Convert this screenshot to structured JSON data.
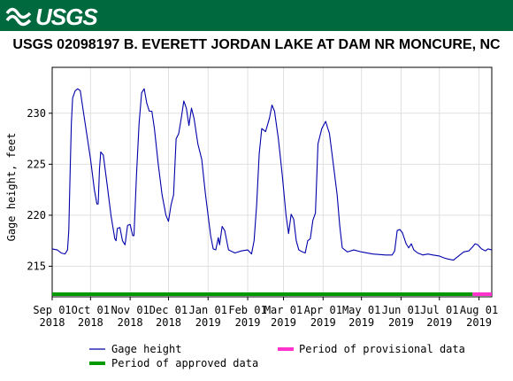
{
  "header": {
    "logo_text": "USGS",
    "logo_icon": "usgs-wave-logo",
    "brand_color": "#00693e"
  },
  "title": "USGS 02098197  B. EVERETT JORDAN LAKE AT DAM NR MONCURE, NC",
  "chart_data": {
    "type": "line",
    "ylabel": "Gage height, feet",
    "xlabel": "",
    "ylim": [
      212,
      234.5
    ],
    "xlim": [
      "2018-09-01",
      "2019-08-11"
    ],
    "grid": true,
    "y_ticks": [
      215,
      220,
      225,
      230
    ],
    "x_ticks": [
      {
        "date": "2018-09-01",
        "label_top": "Sep 01",
        "label_bottom": "2018"
      },
      {
        "date": "2018-10-01",
        "label_top": "Oct 01",
        "label_bottom": "2018"
      },
      {
        "date": "2018-11-01",
        "label_top": "Nov 01",
        "label_bottom": "2018"
      },
      {
        "date": "2018-12-01",
        "label_top": "Dec 01",
        "label_bottom": "2018"
      },
      {
        "date": "2019-01-01",
        "label_top": "Jan 01",
        "label_bottom": "2019"
      },
      {
        "date": "2019-02-01",
        "label_top": "Feb 01",
        "label_bottom": "2019"
      },
      {
        "date": "2019-03-01",
        "label_top": "Mar 01",
        "label_bottom": "2019"
      },
      {
        "date": "2019-04-01",
        "label_top": "Apr 01",
        "label_bottom": "2019"
      },
      {
        "date": "2019-05-01",
        "label_top": "May 01",
        "label_bottom": "2019"
      },
      {
        "date": "2019-06-01",
        "label_top": "Jun 01",
        "label_bottom": "2019"
      },
      {
        "date": "2019-07-01",
        "label_top": "Jul 01",
        "label_bottom": "2019"
      },
      {
        "date": "2019-08-01",
        "label_top": "Aug 01",
        "label_bottom": "2019"
      }
    ],
    "series": [
      {
        "name": "Gage height",
        "color": "#0000aa",
        "points": [
          [
            "2018-09-01",
            216.7
          ],
          [
            "2018-09-05",
            216.6
          ],
          [
            "2018-09-08",
            216.3
          ],
          [
            "2018-09-11",
            216.2
          ],
          [
            "2018-09-13",
            216.6
          ],
          [
            "2018-09-14",
            218.5
          ],
          [
            "2018-09-15",
            224
          ],
          [
            "2018-09-16",
            229
          ],
          [
            "2018-09-17",
            231.5
          ],
          [
            "2018-09-19",
            232.2
          ],
          [
            "2018-09-21",
            232.4
          ],
          [
            "2018-09-23",
            232.2
          ],
          [
            "2018-09-25",
            230.5
          ],
          [
            "2018-09-28",
            228
          ],
          [
            "2018-10-01",
            225.5
          ],
          [
            "2018-10-04",
            222.5
          ],
          [
            "2018-10-06",
            221.1
          ],
          [
            "2018-10-07",
            221.1
          ],
          [
            "2018-10-08",
            224.5
          ],
          [
            "2018-10-09",
            226.2
          ],
          [
            "2018-10-11",
            225.9
          ],
          [
            "2018-10-14",
            223
          ],
          [
            "2018-10-17",
            220
          ],
          [
            "2018-10-20",
            217.7
          ],
          [
            "2018-10-21",
            217.5
          ],
          [
            "2018-10-22",
            218.7
          ],
          [
            "2018-10-24",
            218.8
          ],
          [
            "2018-10-26",
            217.5
          ],
          [
            "2018-10-28",
            217.1
          ],
          [
            "2018-10-30",
            219
          ],
          [
            "2018-11-01",
            219.1
          ],
          [
            "2018-11-03",
            218
          ],
          [
            "2018-11-04",
            218
          ],
          [
            "2018-11-06",
            224
          ],
          [
            "2018-11-08",
            229
          ],
          [
            "2018-11-10",
            232
          ],
          [
            "2018-11-12",
            232.4
          ],
          [
            "2018-11-14",
            231
          ],
          [
            "2018-11-16",
            230.2
          ],
          [
            "2018-11-18",
            230.2
          ],
          [
            "2018-11-20",
            228.5
          ],
          [
            "2018-11-23",
            225
          ],
          [
            "2018-11-26",
            222
          ],
          [
            "2018-11-29",
            220
          ],
          [
            "2018-12-01",
            219.4
          ],
          [
            "2018-12-03",
            221
          ],
          [
            "2018-12-05",
            222
          ],
          [
            "2018-12-07",
            227.5
          ],
          [
            "2018-12-09",
            228
          ],
          [
            "2018-12-11",
            229.5
          ],
          [
            "2018-12-13",
            231.2
          ],
          [
            "2018-12-15",
            230.5
          ],
          [
            "2018-12-17",
            228.8
          ],
          [
            "2018-12-19",
            230.5
          ],
          [
            "2018-12-21",
            229.5
          ],
          [
            "2018-12-24",
            227
          ],
          [
            "2018-12-27",
            225.5
          ],
          [
            "2018-12-30",
            222
          ],
          [
            "2019-01-03",
            218
          ],
          [
            "2019-01-05",
            216.7
          ],
          [
            "2019-01-07",
            216.6
          ],
          [
            "2019-01-09",
            217.8
          ],
          [
            "2019-01-10",
            217.1
          ],
          [
            "2019-01-12",
            218.9
          ],
          [
            "2019-01-14",
            218.5
          ],
          [
            "2019-01-17",
            216.6
          ],
          [
            "2019-01-22",
            216.3
          ],
          [
            "2019-01-27",
            216.5
          ],
          [
            "2019-02-01",
            216.6
          ],
          [
            "2019-02-04",
            216.2
          ],
          [
            "2019-02-06",
            217.5
          ],
          [
            "2019-02-08",
            221
          ],
          [
            "2019-02-10",
            226
          ],
          [
            "2019-02-12",
            228.5
          ],
          [
            "2019-02-15",
            228.2
          ],
          [
            "2019-02-18",
            229.5
          ],
          [
            "2019-02-20",
            230.8
          ],
          [
            "2019-02-22",
            230.2
          ],
          [
            "2019-02-25",
            227.5
          ],
          [
            "2019-02-28",
            224
          ],
          [
            "2019-03-03",
            220
          ],
          [
            "2019-03-05",
            218.2
          ],
          [
            "2019-03-07",
            220.1
          ],
          [
            "2019-03-09",
            219.6
          ],
          [
            "2019-03-11",
            217.5
          ],
          [
            "2019-03-13",
            216.6
          ],
          [
            "2019-03-16",
            216.4
          ],
          [
            "2019-03-18",
            216.3
          ],
          [
            "2019-03-20",
            217.5
          ],
          [
            "2019-03-22",
            217.7
          ],
          [
            "2019-03-24",
            219.5
          ],
          [
            "2019-03-26",
            220.2
          ],
          [
            "2019-03-28",
            227
          ],
          [
            "2019-03-31",
            228.5
          ],
          [
            "2019-04-03",
            229.2
          ],
          [
            "2019-04-06",
            228
          ],
          [
            "2019-04-09",
            225
          ],
          [
            "2019-04-12",
            222
          ],
          [
            "2019-04-14",
            219
          ],
          [
            "2019-04-16",
            216.8
          ],
          [
            "2019-04-20",
            216.4
          ],
          [
            "2019-04-25",
            216.6
          ],
          [
            "2019-05-01",
            216.4
          ],
          [
            "2019-05-10",
            216.2
          ],
          [
            "2019-05-20",
            216.1
          ],
          [
            "2019-05-25",
            216.1
          ],
          [
            "2019-05-27",
            216.5
          ],
          [
            "2019-05-29",
            218.5
          ],
          [
            "2019-05-31",
            218.6
          ],
          [
            "2019-06-02",
            218.3
          ],
          [
            "2019-06-05",
            217.2
          ],
          [
            "2019-06-07",
            216.8
          ],
          [
            "2019-06-09",
            217.2
          ],
          [
            "2019-06-11",
            216.6
          ],
          [
            "2019-06-14",
            216.3
          ],
          [
            "2019-06-18",
            216.1
          ],
          [
            "2019-06-22",
            216.2
          ],
          [
            "2019-06-26",
            216.1
          ],
          [
            "2019-07-01",
            216.0
          ],
          [
            "2019-07-05",
            215.8
          ],
          [
            "2019-07-08",
            215.7
          ],
          [
            "2019-07-12",
            215.6
          ],
          [
            "2019-07-16",
            216.0
          ],
          [
            "2019-07-20",
            216.4
          ],
          [
            "2019-07-24",
            216.5
          ],
          [
            "2019-07-27",
            216.9
          ],
          [
            "2019-07-29",
            217.2
          ],
          [
            "2019-07-31",
            217.1
          ],
          [
            "2019-08-03",
            216.7
          ],
          [
            "2019-08-06",
            216.5
          ],
          [
            "2019-08-08",
            216.7
          ],
          [
            "2019-08-11",
            216.6
          ]
        ]
      }
    ],
    "approval_periods": [
      {
        "name": "Period of approved data",
        "color": "#009900",
        "start": "2018-09-01",
        "end": "2019-07-27"
      },
      {
        "name": "Period of provisional data",
        "color": "#ff33cc",
        "start": "2019-07-27",
        "end": "2019-08-11"
      }
    ],
    "legend": {
      "placement": "bottom",
      "items": [
        {
          "label": "Gage height",
          "color": "#0000aa"
        },
        {
          "label": "Period of provisional data",
          "color": "#ff33cc"
        },
        {
          "label": "Period of approved data",
          "color": "#009900"
        }
      ]
    }
  }
}
